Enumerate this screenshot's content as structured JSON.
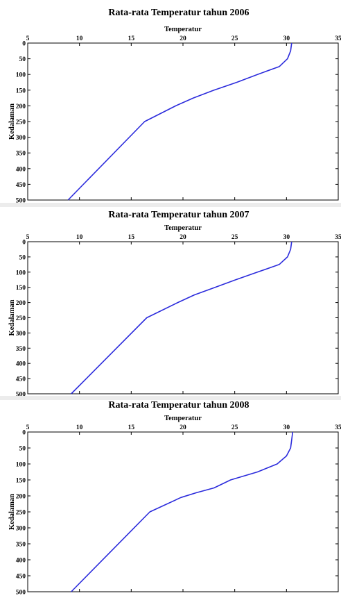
{
  "chart_data": [
    {
      "type": "line",
      "title": "Rata-rata Temperatur tahun 2006",
      "xlabel": "Temperatur",
      "ylabel": "Kedalaman",
      "xlim": [
        5,
        35
      ],
      "ylim": [
        0,
        500
      ],
      "y_inverted": true,
      "x_axis_position": "top",
      "x_ticks": [
        5,
        10,
        15,
        20,
        25,
        30,
        35
      ],
      "y_ticks": [
        0,
        50,
        100,
        150,
        200,
        250,
        300,
        350,
        400,
        450,
        500
      ],
      "grid": false,
      "line_color": "#2b2bdc",
      "series": [
        {
          "x": [
            30.5,
            30.4,
            30.1,
            29.3,
            27.2,
            25.2,
            23.0,
            21.0,
            19.3,
            16.3,
            8.9
          ],
          "y": [
            0,
            25,
            50,
            75,
            100,
            125,
            150,
            175,
            200,
            250,
            500
          ]
        }
      ]
    },
    {
      "type": "line",
      "title": "Rata-rata Temperatur tahun 2007",
      "xlabel": "Temperatur",
      "ylabel": "Kedalaman",
      "xlim": [
        5,
        35
      ],
      "ylim": [
        0,
        500
      ],
      "y_inverted": true,
      "x_axis_position": "top",
      "x_ticks": [
        5,
        10,
        15,
        20,
        25,
        30,
        35
      ],
      "y_ticks": [
        0,
        50,
        100,
        150,
        200,
        250,
        300,
        350,
        400,
        450,
        500
      ],
      "grid": false,
      "line_color": "#2b2bdc",
      "series": [
        {
          "x": [
            30.5,
            30.4,
            30.1,
            29.3,
            27.2,
            25.1,
            23.1,
            21.1,
            19.5,
            16.5,
            9.2
          ],
          "y": [
            0,
            25,
            50,
            75,
            100,
            125,
            150,
            175,
            200,
            250,
            500
          ]
        }
      ]
    },
    {
      "type": "line",
      "title": "Rata-rata Temperatur tahun 2008",
      "xlabel": "Temperatur",
      "ylabel": "Kedalaman",
      "xlim": [
        5,
        35
      ],
      "ylim": [
        0,
        500
      ],
      "y_inverted": true,
      "x_axis_position": "top",
      "x_ticks": [
        5,
        10,
        15,
        20,
        25,
        30,
        35
      ],
      "y_ticks": [
        0,
        50,
        100,
        150,
        200,
        250,
        300,
        350,
        400,
        450,
        500
      ],
      "grid": false,
      "line_color": "#2b2bdc",
      "series": [
        {
          "x": [
            30.6,
            30.5,
            30.4,
            30.0,
            29.1,
            27.2,
            24.6,
            23.0,
            21.3,
            19.8,
            16.8,
            9.2
          ],
          "y": [
            0,
            25,
            50,
            75,
            100,
            125,
            150,
            175,
            190,
            205,
            250,
            500
          ]
        }
      ]
    }
  ]
}
